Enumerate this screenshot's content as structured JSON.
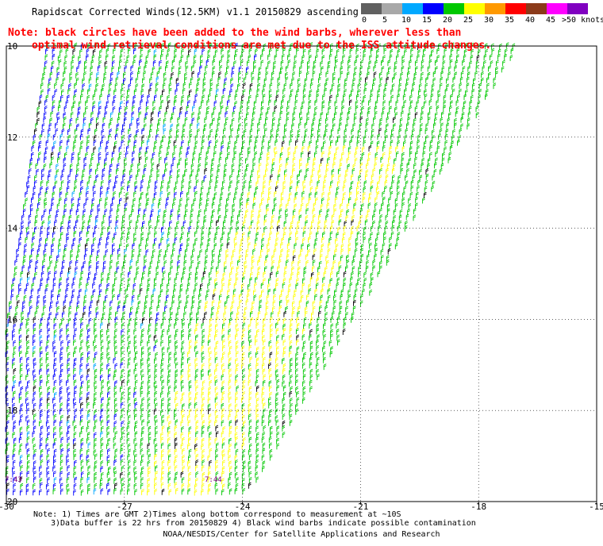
{
  "header": {
    "title": "Rapidscat Corrected Winds(12.5KM) v1.1 20150829 ascending"
  },
  "notice": {
    "line1": "Note: black circles have been added to the wind barbs, wherever less than",
    "line2": "optimal wind retrieval conditions are met due to the ISS attitude changes."
  },
  "legend": {
    "labels": [
      "0",
      "5",
      "10",
      "15",
      "20",
      "25",
      "30",
      "35",
      "40",
      "45",
      ">50 knots"
    ],
    "colors": [
      "#606060",
      "#a8a8a8",
      "#00a8ff",
      "#0000ff",
      "#00c800",
      "#ffff00",
      "#ff9900",
      "#ff0000",
      "#8b3a1a",
      "#ff00ff",
      "#8000c0"
    ]
  },
  "axes": {
    "x_ticks": [
      "-30",
      "-27",
      "-24",
      "-21",
      "-18",
      "-15"
    ],
    "y_ticks": [
      "10",
      "12",
      "14",
      "16",
      "18",
      "20"
    ]
  },
  "time_labels": [
    "7:43",
    "7:44"
  ],
  "footer": {
    "line1": "Note: 1) Times are GMT 2)Times along bottom correspond to measurement at ~10S",
    "line2": "3)Data buffer is 22 hrs from 20150829 4) Black wind barbs indicate possible contamination",
    "credit": "NOAA/NESDIS/Center for Satellite Applications and Research"
  },
  "chart_data": {
    "type": "wind-barb-map",
    "x_range": [
      -30,
      -15
    ],
    "y_range": [
      10,
      20
    ],
    "x_unit": "longitude",
    "y_unit": "latitude (S)",
    "colors_by_speed_knots": {
      "10-15": "#0000ff",
      "15-20": "#00c800",
      "20-25": "#ffff00",
      "possible-contamination": "#000000"
    }
  }
}
